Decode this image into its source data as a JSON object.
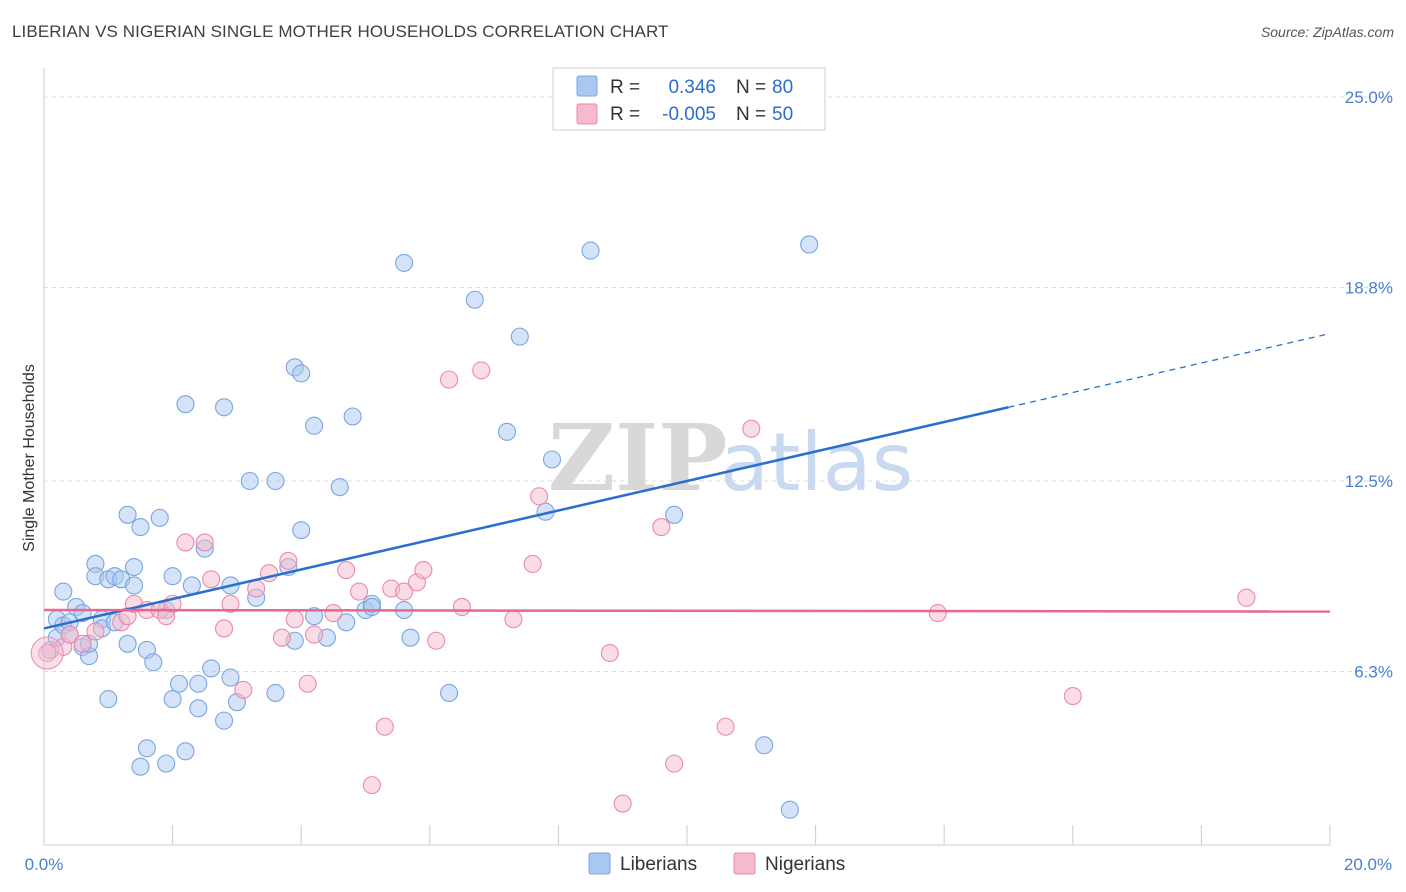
{
  "title": "LIBERIAN VS NIGERIAN SINGLE MOTHER HOUSEHOLDS CORRELATION CHART",
  "source": "Source: ZipAtlas.com",
  "watermark": {
    "zip": "ZIP",
    "atlas": "atlas"
  },
  "colors": {
    "liberians_fill": "#a9c8f0",
    "liberians_stroke": "#7aa6e0",
    "liberians_line": "#2a6fcf",
    "nigerians_fill": "#f6b9cd",
    "nigerians_stroke": "#eb8aab",
    "nigerians_line": "#e8668f",
    "grid": "#dcdcdc",
    "axis_text": "#4a7fd0"
  },
  "legend": {
    "r_label": "R =",
    "n_label": "N =",
    "rows": [
      {
        "r": "0.346",
        "n": "80"
      },
      {
        "r": "-0.005",
        "n": "50"
      }
    ]
  },
  "bottom_legend": [
    "Liberians",
    "Nigerians"
  ],
  "chart_data": {
    "type": "scatter",
    "title": "LIBERIAN VS NIGERIAN SINGLE MOTHER HOUSEHOLDS CORRELATION CHART",
    "xlabel": "",
    "ylabel": "Single Mother Households",
    "xlim": [
      0,
      20
    ],
    "ylim": [
      0,
      25.0
    ],
    "x_tick_labels": [
      "0.0%",
      "20.0%"
    ],
    "y_ticks": [
      6.3,
      12.5,
      18.8,
      25.0
    ],
    "y_tick_labels": [
      "6.3%",
      "12.5%",
      "18.8%",
      "25.0%"
    ],
    "grid": true,
    "legend_position": "top-center",
    "series": [
      {
        "name": "Liberians",
        "r": 0.346,
        "n": 80,
        "trend": {
          "x0": 0,
          "y0": 7.7,
          "x1": 15.0,
          "y1": 14.9,
          "dash_to_x": 20.0,
          "dash_to_y": 17.3
        },
        "points": [
          [
            0.1,
            7.0
          ],
          [
            0.2,
            7.4
          ],
          [
            0.2,
            8.0
          ],
          [
            0.3,
            7.8
          ],
          [
            0.3,
            8.9
          ],
          [
            0.4,
            7.9
          ],
          [
            0.4,
            7.5
          ],
          [
            0.5,
            8.4
          ],
          [
            0.6,
            8.2
          ],
          [
            0.6,
            7.1
          ],
          [
            0.7,
            6.8
          ],
          [
            0.8,
            9.8
          ],
          [
            0.8,
            9.4
          ],
          [
            0.9,
            8.0
          ],
          [
            0.9,
            7.7
          ],
          [
            1.0,
            5.4
          ],
          [
            1.0,
            9.3
          ],
          [
            1.1,
            9.4
          ],
          [
            1.1,
            7.9
          ],
          [
            1.2,
            9.3
          ],
          [
            1.3,
            7.2
          ],
          [
            1.3,
            11.4
          ],
          [
            1.4,
            9.1
          ],
          [
            1.4,
            9.7
          ],
          [
            1.5,
            3.2
          ],
          [
            1.5,
            11.0
          ],
          [
            1.6,
            3.8
          ],
          [
            1.6,
            7.0
          ],
          [
            1.7,
            6.6
          ],
          [
            1.8,
            11.3
          ],
          [
            1.9,
            3.3
          ],
          [
            1.9,
            8.3
          ],
          [
            2.0,
            9.4
          ],
          [
            2.0,
            5.4
          ],
          [
            2.1,
            5.9
          ],
          [
            2.2,
            3.7
          ],
          [
            2.2,
            15.0
          ],
          [
            2.3,
            9.1
          ],
          [
            2.4,
            5.9
          ],
          [
            2.4,
            5.1
          ],
          [
            2.5,
            10.3
          ],
          [
            2.6,
            6.4
          ],
          [
            2.8,
            4.7
          ],
          [
            2.8,
            14.9
          ],
          [
            2.9,
            9.1
          ],
          [
            2.9,
            6.1
          ],
          [
            3.0,
            5.3
          ],
          [
            3.2,
            12.5
          ],
          [
            3.3,
            8.7
          ],
          [
            3.6,
            12.5
          ],
          [
            3.6,
            5.6
          ],
          [
            3.8,
            9.7
          ],
          [
            3.9,
            7.3
          ],
          [
            3.9,
            16.2
          ],
          [
            4.0,
            16.0
          ],
          [
            4.0,
            10.9
          ],
          [
            4.2,
            14.3
          ],
          [
            4.2,
            8.1
          ],
          [
            4.4,
            7.4
          ],
          [
            4.6,
            12.3
          ],
          [
            4.7,
            7.9
          ],
          [
            4.8,
            14.6
          ],
          [
            5.0,
            8.3
          ],
          [
            5.1,
            8.5
          ],
          [
            5.1,
            8.4
          ],
          [
            5.6,
            8.3
          ],
          [
            5.6,
            19.6
          ],
          [
            5.7,
            7.4
          ],
          [
            6.3,
            5.6
          ],
          [
            6.7,
            18.4
          ],
          [
            7.2,
            14.1
          ],
          [
            7.4,
            17.2
          ],
          [
            7.8,
            11.5
          ],
          [
            7.9,
            13.2
          ],
          [
            8.5,
            20.0
          ],
          [
            9.8,
            11.4
          ],
          [
            11.2,
            3.9
          ],
          [
            11.6,
            1.8
          ],
          [
            11.9,
            20.2
          ],
          [
            0.7,
            7.2
          ]
        ]
      },
      {
        "name": "Nigerians",
        "r": -0.005,
        "n": 50,
        "trend": {
          "x0": 0,
          "y0": 8.3,
          "x1": 20.0,
          "y1": 8.25
        },
        "points": [
          [
            0.05,
            6.9
          ],
          [
            0.3,
            7.1
          ],
          [
            0.4,
            7.5
          ],
          [
            0.6,
            7.2
          ],
          [
            0.8,
            7.6
          ],
          [
            1.2,
            7.9
          ],
          [
            1.3,
            8.1
          ],
          [
            1.4,
            8.5
          ],
          [
            1.6,
            8.3
          ],
          [
            1.8,
            8.3
          ],
          [
            1.9,
            8.1
          ],
          [
            2.0,
            8.5
          ],
          [
            2.2,
            10.5
          ],
          [
            2.5,
            10.5
          ],
          [
            2.6,
            9.3
          ],
          [
            2.8,
            7.7
          ],
          [
            2.9,
            8.5
          ],
          [
            3.1,
            5.7
          ],
          [
            3.3,
            9.0
          ],
          [
            3.5,
            9.5
          ],
          [
            3.7,
            7.4
          ],
          [
            3.8,
            9.9
          ],
          [
            3.9,
            8.0
          ],
          [
            4.1,
            5.9
          ],
          [
            4.2,
            7.5
          ],
          [
            4.5,
            8.2
          ],
          [
            4.7,
            9.6
          ],
          [
            4.9,
            8.9
          ],
          [
            5.1,
            2.6
          ],
          [
            5.3,
            4.5
          ],
          [
            5.4,
            9.0
          ],
          [
            5.6,
            8.9
          ],
          [
            5.8,
            9.2
          ],
          [
            5.9,
            9.6
          ],
          [
            6.1,
            7.3
          ],
          [
            6.3,
            15.8
          ],
          [
            6.5,
            8.4
          ],
          [
            6.8,
            16.1
          ],
          [
            7.3,
            8.0
          ],
          [
            7.6,
            9.8
          ],
          [
            7.7,
            12.0
          ],
          [
            8.8,
            6.9
          ],
          [
            9.0,
            2.0
          ],
          [
            9.6,
            11.0
          ],
          [
            9.8,
            3.3
          ],
          [
            10.6,
            4.5
          ],
          [
            11.0,
            14.2
          ],
          [
            13.9,
            8.2
          ],
          [
            16.0,
            5.5
          ],
          [
            18.7,
            8.7
          ]
        ]
      }
    ]
  }
}
